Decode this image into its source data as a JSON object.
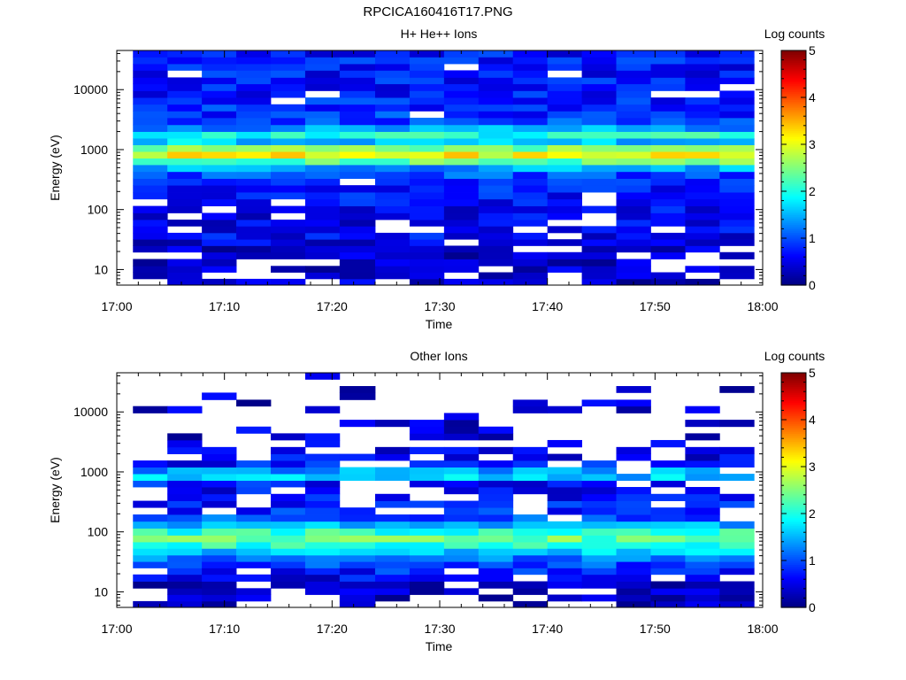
{
  "figure": {
    "title": "RPCICA160416T17.PNG"
  },
  "colormap": {
    "stops": [
      "#00007f",
      "#0000ff",
      "#007fff",
      "#00ffff",
      "#7fff7f",
      "#ffff00",
      "#ff7f00",
      "#ff0000",
      "#7f0000"
    ],
    "empty_color": "#ffffff"
  },
  "chart_data": [
    {
      "type": "heatmap",
      "title": "H+ He++ Ions",
      "xlabel": "Time",
      "ylabel": "Energy (eV)",
      "colorbar_label": "Log counts",
      "colorbar_range": [
        0,
        5
      ],
      "colorbar_ticks": [
        "0",
        "1",
        "2",
        "3",
        "4",
        "5"
      ],
      "x_ticks": [
        "17:00",
        "17:10",
        "17:20",
        "17:30",
        "17:40",
        "17:50",
        "18:00"
      ],
      "x_range_minutes": [
        0,
        60
      ],
      "y_ticks": [
        "10",
        "100",
        "1000",
        "10000"
      ],
      "y_scale": "log",
      "y_range_ev": [
        5.5,
        45000
      ],
      "time_bins_minutes": [
        [
          1.5,
          4.7
        ],
        [
          4.7,
          7.9
        ],
        [
          7.9,
          11.1
        ],
        [
          11.1,
          14.3
        ],
        [
          14.3,
          17.5
        ],
        [
          17.5,
          20.7
        ],
        [
          20.7,
          24.0
        ],
        [
          24.0,
          27.2
        ],
        [
          27.2,
          30.4
        ],
        [
          30.4,
          33.6
        ],
        [
          33.6,
          36.8
        ],
        [
          36.8,
          40.0
        ],
        [
          40.0,
          43.2
        ],
        [
          43.2,
          46.4
        ],
        [
          46.4,
          49.6
        ],
        [
          49.6,
          52.8
        ],
        [
          52.8,
          56.0
        ],
        [
          56.0,
          59.2
        ]
      ],
      "energy_bins_ev": [
        5.5,
        7.0,
        9.0,
        11.5,
        15.0,
        19.5,
        25.0,
        32.0,
        41.0,
        53.0,
        68.0,
        88.0,
        115.0,
        150.0,
        195.0,
        255.0,
        330.0,
        430.0,
        560.0,
        720.0,
        930.0,
        1200.0,
        1550.0,
        2000.0,
        2600.0,
        3400.0,
        4400.0,
        5700.0,
        7400.0,
        9600.0,
        12500.0,
        16000.0,
        21000.0,
        27000.0,
        35000.0,
        45000.0
      ],
      "profile_log_counts": [
        0.35,
        0.35,
        0.35,
        0.3,
        0.35,
        0.4,
        0.45,
        0.6,
        0.55,
        0.55,
        0.55,
        0.6,
        0.65,
        0.7,
        0.75,
        0.85,
        1.0,
        1.4,
        2.4,
        3.1,
        2.5,
        1.6,
        2.0,
        1.4,
        1.0,
        0.85,
        0.8,
        0.75,
        0.7,
        0.7,
        0.7,
        0.7,
        0.7,
        0.7,
        0.7
      ],
      "empty_probability": [
        0.25,
        0.3,
        0.35,
        0.35,
        0.25,
        0.2,
        0.12,
        0.12,
        0.12,
        0.1,
        0.1,
        0.08,
        0.06,
        0.05,
        0.04,
        0.03,
        0.02,
        0.0,
        0.0,
        0.0,
        0.0,
        0.0,
        0.0,
        0.0,
        0.0,
        0.02,
        0.03,
        0.03,
        0.04,
        0.05,
        0.05,
        0.05,
        0.05,
        0.04,
        0.04
      ],
      "noise": 0.35,
      "seed": 17
    },
    {
      "type": "heatmap",
      "title": "Other Ions",
      "xlabel": "Time",
      "ylabel": "Energy (eV)",
      "colorbar_label": "Log counts",
      "colorbar_range": [
        0,
        5
      ],
      "colorbar_ticks": [
        "0",
        "1",
        "2",
        "3",
        "4",
        "5"
      ],
      "x_ticks": [
        "17:00",
        "17:10",
        "17:20",
        "17:30",
        "17:40",
        "17:50",
        "18:00"
      ],
      "x_range_minutes": [
        0,
        60
      ],
      "y_ticks": [
        "10",
        "100",
        "1000",
        "10000"
      ],
      "y_scale": "log",
      "y_range_ev": [
        5.5,
        45000
      ],
      "time_bins_minutes": [
        [
          1.5,
          4.7
        ],
        [
          4.7,
          7.9
        ],
        [
          7.9,
          11.1
        ],
        [
          11.1,
          14.3
        ],
        [
          14.3,
          17.5
        ],
        [
          17.5,
          20.7
        ],
        [
          20.7,
          24.0
        ],
        [
          24.0,
          27.2
        ],
        [
          27.2,
          30.4
        ],
        [
          30.4,
          33.6
        ],
        [
          33.6,
          36.8
        ],
        [
          36.8,
          40.0
        ],
        [
          40.0,
          43.2
        ],
        [
          43.2,
          46.4
        ],
        [
          46.4,
          49.6
        ],
        [
          49.6,
          52.8
        ],
        [
          52.8,
          56.0
        ],
        [
          56.0,
          59.2
        ]
      ],
      "energy_bins_ev": [
        5.5,
        7.0,
        9.0,
        11.5,
        15.0,
        19.5,
        25.0,
        32.0,
        41.0,
        53.0,
        68.0,
        88.0,
        115.0,
        150.0,
        195.0,
        255.0,
        330.0,
        430.0,
        560.0,
        720.0,
        930.0,
        1200.0,
        1550.0,
        2000.0,
        2600.0,
        3400.0,
        4400.0,
        5700.0,
        7400.0,
        9600.0,
        12500.0,
        16000.0,
        21000.0,
        27000.0,
        35000.0,
        45000.0
      ],
      "profile_log_counts": [
        0.25,
        0.3,
        0.35,
        0.4,
        0.55,
        0.75,
        0.95,
        1.2,
        1.6,
        2.1,
        2.35,
        2.1,
        1.5,
        1.0,
        0.8,
        0.7,
        0.65,
        0.6,
        0.7,
        1.6,
        1.4,
        0.7,
        0.55,
        0.5,
        0.45,
        0.4,
        0.4,
        0.35,
        0.35,
        0.35,
        0.35,
        0.35,
        0.3,
        0.3,
        0.3
      ],
      "empty_probability": [
        0.15,
        0.2,
        0.25,
        0.2,
        0.15,
        0.1,
        0.05,
        0.02,
        0.0,
        0.0,
        0.0,
        0.0,
        0.02,
        0.1,
        0.2,
        0.3,
        0.35,
        0.35,
        0.3,
        0.0,
        0.05,
        0.35,
        0.45,
        0.55,
        0.65,
        0.7,
        0.75,
        0.75,
        0.75,
        0.75,
        0.8,
        0.8,
        0.85,
        0.85,
        0.9
      ],
      "noise": 0.35,
      "seed": 91
    }
  ]
}
